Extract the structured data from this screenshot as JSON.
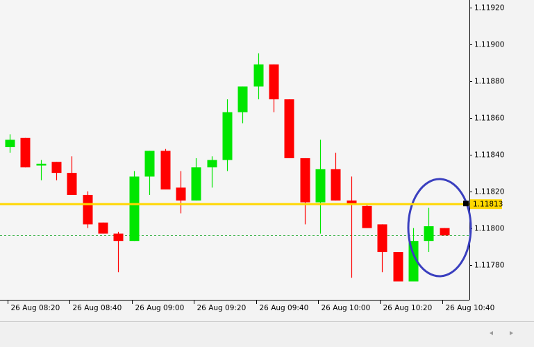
{
  "chart_data": {
    "type": "candlestick",
    "categories": [
      "26 Aug 08:20",
      null,
      null,
      null,
      "26 Aug 08:40",
      null,
      null,
      null,
      "26 Aug 09:00",
      null,
      null,
      null,
      "26 Aug 09:20",
      null,
      null,
      null,
      "26 Aug 09:40",
      null,
      null,
      null,
      "26 Aug 10:00",
      null,
      null,
      null,
      "26 Aug 10:20",
      null,
      null,
      null,
      "26 Aug 10:40"
    ],
    "open": [
      1.11844,
      1.11849,
      1.11834,
      1.11836,
      1.1183,
      1.11818,
      1.11803,
      1.11797,
      1.11793,
      1.11828,
      1.11842,
      1.11822,
      1.11815,
      1.11833,
      1.11837,
      1.11863,
      1.11877,
      1.11889,
      1.1187,
      1.11838,
      1.11814,
      1.11832,
      1.11815,
      1.11812,
      1.11802,
      1.11787,
      1.11771,
      1.11793,
      1.118
    ],
    "high": [
      1.11851,
      1.11849,
      1.11837,
      1.11836,
      1.11839,
      1.1182,
      1.11803,
      1.11798,
      1.11831,
      1.11842,
      1.11843,
      1.11831,
      1.11838,
      1.11839,
      1.1187,
      1.11877,
      1.11895,
      1.11889,
      1.1187,
      1.11838,
      1.11848,
      1.11841,
      1.11828,
      1.11813,
      1.11802,
      1.11787,
      1.118,
      1.11811,
      1.118
    ],
    "low": [
      1.11841,
      1.11833,
      1.11826,
      1.11826,
      1.11818,
      1.118,
      1.11797,
      1.11776,
      1.11793,
      1.11818,
      1.11821,
      1.11808,
      1.11815,
      1.11822,
      1.11831,
      1.11857,
      1.1187,
      1.11863,
      1.11838,
      1.11802,
      1.11797,
      1.11815,
      1.11773,
      1.118,
      1.11776,
      1.11771,
      1.11771,
      1.11787,
      1.11796
    ],
    "close": [
      1.11848,
      1.11833,
      1.11835,
      1.1183,
      1.11818,
      1.11802,
      1.11797,
      1.11793,
      1.11828,
      1.11842,
      1.11821,
      1.11815,
      1.11833,
      1.11837,
      1.11863,
      1.11877,
      1.11889,
      1.1187,
      1.11838,
      1.11814,
      1.11832,
      1.11815,
      1.11813,
      1.118,
      1.11787,
      1.11771,
      1.11793,
      1.11801,
      1.11796
    ],
    "up_color": "#00e600",
    "down_color": "#ff0000",
    "ylim": [
      1.11761,
      1.11924
    ],
    "yticks": [
      {
        "value": 1.1192,
        "label": "1.11920"
      },
      {
        "value": 1.119,
        "label": "1.11900"
      },
      {
        "value": 1.1188,
        "label": "1.11880"
      },
      {
        "value": 1.1186,
        "label": "1.11860"
      },
      {
        "value": 1.1184,
        "label": "1.11840"
      },
      {
        "value": 1.1182,
        "label": "1.11820"
      },
      {
        "value": 1.118,
        "label": "1.11800"
      },
      {
        "value": 1.1178,
        "label": "1.11780"
      }
    ],
    "price_line": {
      "value": 1.11813,
      "label": "1.11813",
      "color": "#ffd700"
    },
    "ask_line": {
      "value": 1.11796,
      "color": "#3cb34a"
    }
  }
}
